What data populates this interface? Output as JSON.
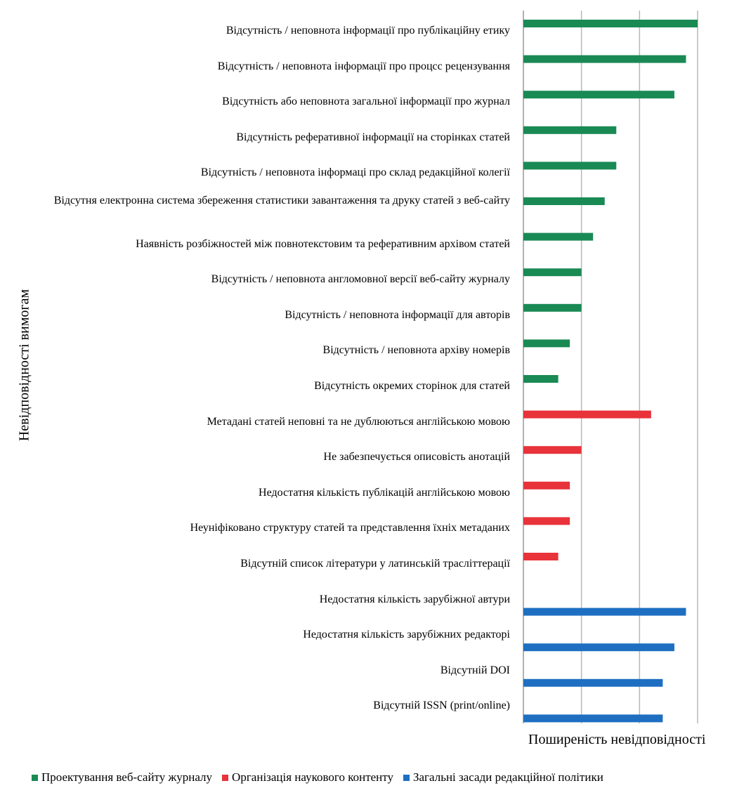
{
  "chart_data": {
    "type": "bar",
    "orientation": "horizontal",
    "title": "",
    "xlabel": "Поширеність невідповідності",
    "ylabel": "Невідповідності вимогам",
    "xlim": [
      0,
      15
    ],
    "x_ticks_shown": false,
    "grid": "vertical",
    "legend_position": "bottom",
    "series": [
      {
        "name": "Проектування веб-сайту журналу",
        "color": "#1a8a55"
      },
      {
        "name": "Організація наукового контенту",
        "color": "#e8333a"
      },
      {
        "name": "Загальні засади редакційної політики",
        "color": "#1e6fc2"
      }
    ],
    "categories": [
      "Відсутність / неповнота інформації  про публікаційну  етику",
      "Відсутність / неповнота інформації про процсс рецензування",
      "Відсутність або неповнота загальної  інформації про журнал",
      "Відсутність реферативної інформації на сторінках статей",
      "Відсутність / неповнота інформаці  про склад редакційної колегії",
      "Відсутня електронна система збереження статистики завантаження та друку статей з веб-сайту",
      "Наявність розбіжностей між повнотекстовим та реферативним архівом статей",
      "Відсутність / неповнота англомовної версії веб-сайту журналу",
      "Відсутність / неповнота інформації  для авторів",
      "Відсутність / неповнота архіву номерів",
      "Відсутність окремих сторінок для статей",
      "Метадані статей неповні та не дублюються англійською мовою",
      "Не забезпечується описовість анотацій",
      "Недостатня кількість публікацій  англійською мовою",
      "Неуніфіковано  структуру статей та представлення їхніх метаданих",
      "Відсутній список літератури у латинській трасліттерації",
      "Недостатня кількість зарубіжної автури",
      "Недостатня кількість зарубіжних редакторі",
      "Відсутній DOI",
      "Відсутній ISSN (print/online)"
    ],
    "values": [
      15,
      14,
      13,
      8,
      8,
      7,
      6,
      5,
      5,
      4,
      3,
      11,
      5,
      4,
      4,
      3,
      14,
      13,
      12,
      12
    ],
    "series_index": [
      0,
      0,
      0,
      0,
      0,
      0,
      0,
      0,
      0,
      0,
      0,
      1,
      1,
      1,
      1,
      1,
      2,
      2,
      2,
      2
    ]
  }
}
